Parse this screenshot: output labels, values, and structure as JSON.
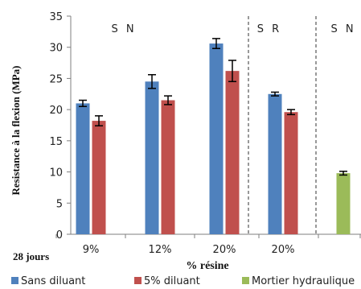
{
  "chart_data": {
    "type": "bar",
    "ylabel": "Resistance à la flexion (MPa)",
    "xlabel": "% résine",
    "note": "28 jours",
    "ylim": [
      0,
      35
    ],
    "yticks": [
      0,
      5,
      10,
      15,
      20,
      25,
      30,
      35
    ],
    "categories": [
      "9%",
      "12%",
      "20%",
      "20%",
      ""
    ],
    "group_labels": [
      "S N",
      "S R",
      "S N"
    ],
    "series": [
      {
        "name": "Sans diluant",
        "color": "#4f81bd",
        "values": [
          21.0,
          24.5,
          30.6,
          22.5,
          null
        ],
        "errors": [
          0.5,
          1.1,
          0.8,
          0.3,
          null
        ]
      },
      {
        "name": "5% diluant",
        "color": "#c0504d",
        "values": [
          18.2,
          21.5,
          26.2,
          19.6,
          null
        ],
        "errors": [
          0.8,
          0.7,
          1.7,
          0.4,
          null
        ]
      },
      {
        "name": "Mortier hydraulique",
        "color": "#9bbb59",
        "values": [
          null,
          null,
          null,
          null,
          9.8
        ],
        "errors": [
          null,
          null,
          null,
          null,
          0.3
        ]
      }
    ],
    "grid": false,
    "legend_position": "bottom"
  }
}
